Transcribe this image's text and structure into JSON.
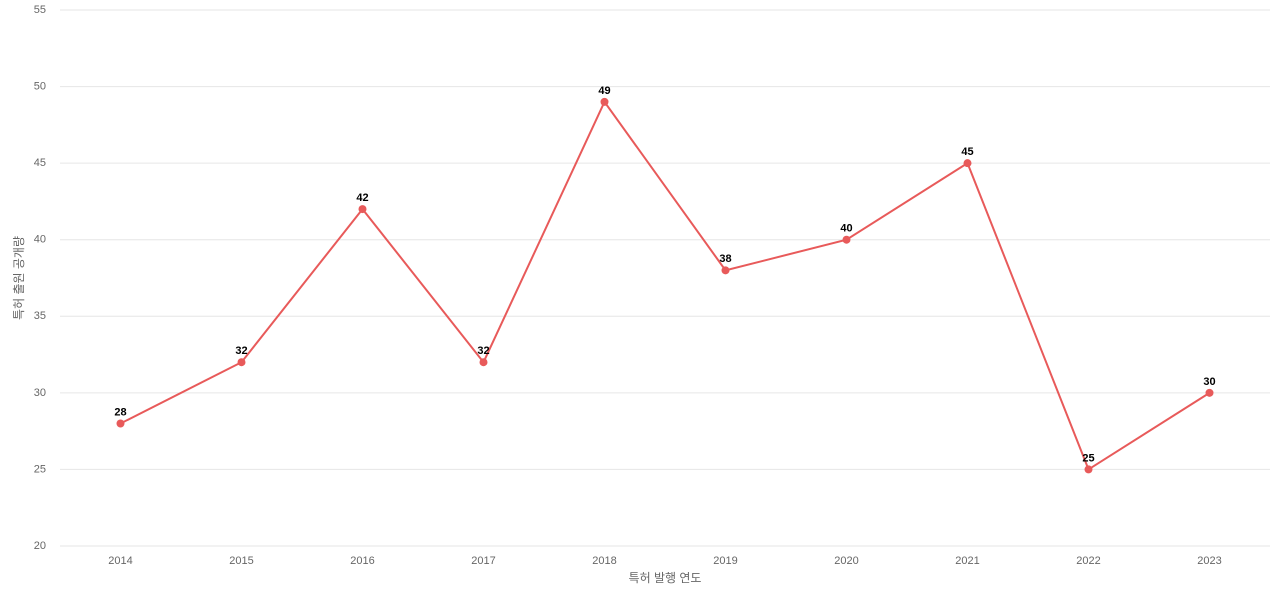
{
  "chart_data": {
    "type": "line",
    "x_label": "특허 발행 연도",
    "y_label": "특허 출원 공개량",
    "categories": [
      "2014",
      "2015",
      "2016",
      "2017",
      "2018",
      "2019",
      "2020",
      "2021",
      "2022",
      "2023"
    ],
    "series": [
      {
        "color": "#e85a5a",
        "values": [
          28,
          32,
          42,
          32,
          49,
          38,
          40,
          45,
          25,
          30
        ]
      }
    ],
    "ylim": [
      20,
      55
    ],
    "yticks": [
      20,
      25,
      30,
      35,
      40,
      45,
      50,
      55
    ],
    "grid": true
  }
}
